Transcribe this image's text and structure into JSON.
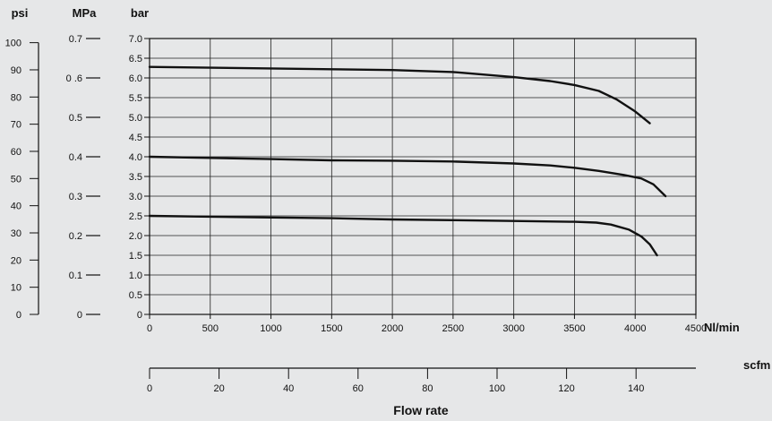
{
  "chart_data": {
    "type": "line",
    "xlabel": "Flow rate",
    "x_unit": "Nl/min",
    "x_secondary_unit": "scfm",
    "x_ticks": [
      0,
      500,
      1000,
      1500,
      2000,
      2500,
      3000,
      3500,
      4000,
      4500
    ],
    "x_secondary_ticks": [
      0,
      20,
      40,
      60,
      80,
      100,
      120,
      140
    ],
    "xlim": [
      0,
      4500
    ],
    "ylabel": "bar",
    "ylim": [
      0,
      7.0
    ],
    "y_ticks": [
      0,
      0.5,
      1.0,
      1.5,
      2.0,
      2.5,
      3.0,
      3.5,
      4.0,
      4.5,
      5.0,
      5.5,
      6.0,
      6.5,
      7.0
    ],
    "y_tick_labels": [
      "0",
      "0.5",
      "1.0",
      "1.5",
      "2.0",
      "2.5",
      "3.0",
      "3.5",
      "4.0",
      "4.5",
      "5.0",
      "5.5",
      "6.0",
      "6.5",
      "7.0"
    ],
    "psi_axis": {
      "label": "psi",
      "ticks": [
        0,
        10,
        20,
        30,
        40,
        50,
        60,
        70,
        80,
        90,
        100
      ],
      "tick_labels": [
        "0",
        "10",
        "20",
        "30",
        "40",
        "50",
        "60",
        "70",
        "80",
        "90",
        "100"
      ]
    },
    "mpa_axis": {
      "label": "MPa",
      "ticks": [
        0,
        0.1,
        0.2,
        0.3,
        0.4,
        0.5,
        0.6,
        0.7
      ],
      "tick_labels": [
        "0",
        "0.1",
        "0.2",
        "0.3",
        "0.4",
        "0.5",
        "0 .6",
        "0.7"
      ]
    },
    "grid": true,
    "series": [
      {
        "x": [
          0,
          500,
          1000,
          1500,
          2000,
          2500,
          3000,
          3300,
          3500,
          3700,
          3850,
          4000,
          4120
        ],
        "y": [
          6.28,
          6.26,
          6.24,
          6.22,
          6.2,
          6.15,
          6.02,
          5.92,
          5.82,
          5.67,
          5.45,
          5.15,
          4.85
        ]
      },
      {
        "x": [
          0,
          500,
          1000,
          1500,
          2000,
          2500,
          3000,
          3300,
          3500,
          3700,
          3900,
          4050,
          4150,
          4250
        ],
        "y": [
          4.0,
          3.97,
          3.94,
          3.91,
          3.9,
          3.88,
          3.83,
          3.78,
          3.72,
          3.64,
          3.54,
          3.45,
          3.3,
          3.0
        ]
      },
      {
        "x": [
          0,
          500,
          1000,
          1500,
          2000,
          2500,
          3000,
          3500,
          3680,
          3800,
          3950,
          4050,
          4120,
          4180
        ],
        "y": [
          2.5,
          2.48,
          2.46,
          2.44,
          2.41,
          2.39,
          2.37,
          2.35,
          2.33,
          2.28,
          2.15,
          1.98,
          1.78,
          1.5
        ]
      }
    ]
  }
}
